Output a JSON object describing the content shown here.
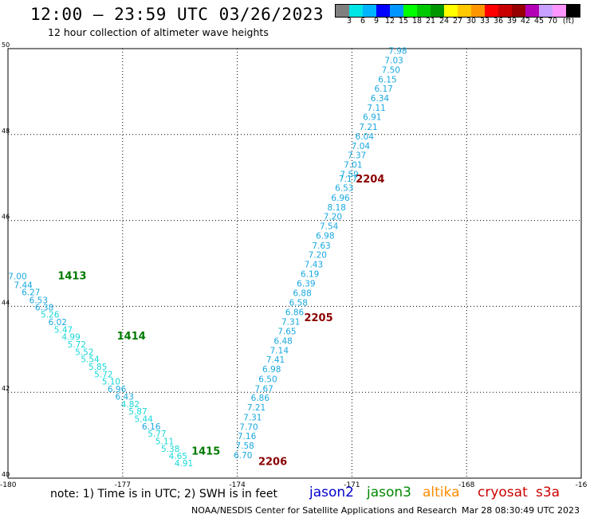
{
  "header": {
    "title": "12:00 – 23:59 UTC 03/26/2023",
    "subtitle": "12 hour collection of altimeter wave heights"
  },
  "colorbar": {
    "unit": "(ft)",
    "colors": [
      "#808080",
      "#00e5e5",
      "#00b4ff",
      "#0000ff",
      "#0096ff",
      "#00ff00",
      "#00c800",
      "#009600",
      "#ffff00",
      "#ffc800",
      "#ff9600",
      "#ff0000",
      "#c80000",
      "#960000",
      "#b400b4",
      "#c8a0ff",
      "#ff96ff",
      "#000000"
    ],
    "labels": [
      "3",
      "6",
      "9",
      "12",
      "15",
      "18",
      "21",
      "24",
      "27",
      "30",
      "33",
      "36",
      "39",
      "42",
      "45",
      "70"
    ]
  },
  "map": {
    "lon_ticks": [
      "-180",
      "-177",
      "-174",
      "-171",
      "-168",
      "-16"
    ],
    "lat_ticks": [
      "50",
      "48",
      "46",
      "44",
      "42",
      "40"
    ],
    "passes": [
      {
        "id": "2204",
        "satellite": "jason2",
        "label_color": "#8b0000",
        "points": [
          {
            "lat": 49.95,
            "lon": -169.8,
            "swh": "7.98"
          },
          {
            "lat": 49.73,
            "lon": -169.9,
            "swh": "7.03"
          },
          {
            "lat": 49.51,
            "lon": -169.98,
            "swh": "7.50"
          },
          {
            "lat": 49.29,
            "lon": -170.07,
            "swh": "6.15"
          },
          {
            "lat": 49.07,
            "lon": -170.17,
            "swh": "6.17"
          },
          {
            "lat": 48.85,
            "lon": -170.27,
            "swh": "6.34"
          },
          {
            "lat": 48.63,
            "lon": -170.36,
            "swh": "7.11"
          },
          {
            "lat": 48.41,
            "lon": -170.47,
            "swh": "6.91"
          },
          {
            "lat": 48.18,
            "lon": -170.57,
            "swh": "7.21"
          },
          {
            "lat": 47.96,
            "lon": -170.67,
            "swh": "6.04"
          },
          {
            "lat": 47.74,
            "lon": -170.77,
            "swh": "7.04"
          },
          {
            "lat": 47.52,
            "lon": -170.87,
            "swh": "7.37"
          },
          {
            "lat": 47.3,
            "lon": -170.97,
            "swh": "7.01"
          },
          {
            "lat": 47.08,
            "lon": -171.07,
            "swh": "7.59"
          },
          {
            "lat": 46.98,
            "lon": -171.1,
            "swh": "7.17"
          },
          {
            "lat": 46.76,
            "lon": -171.2,
            "swh": "6.53"
          },
          {
            "lat": 46.53,
            "lon": -171.3,
            "swh": "6.96"
          },
          {
            "lat": 46.31,
            "lon": -171.4,
            "swh": "8.18"
          },
          {
            "lat": 46.09,
            "lon": -171.5,
            "swh": "7.20"
          },
          {
            "lat": 45.87,
            "lon": -171.6,
            "swh": "7.54"
          },
          {
            "lat": 45.65,
            "lon": -171.7,
            "swh": "6.98"
          },
          {
            "lat": 45.42,
            "lon": -171.8,
            "swh": "7.63"
          },
          {
            "lat": 45.2,
            "lon": -171.9,
            "swh": "7.20"
          },
          {
            "lat": 44.98,
            "lon": -172.0,
            "swh": "7.43"
          },
          {
            "lat": 44.76,
            "lon": -172.1,
            "swh": "6.19"
          },
          {
            "lat": 44.54,
            "lon": -172.2,
            "swh": "6.39"
          },
          {
            "lat": 44.31,
            "lon": -172.3,
            "swh": "6.88"
          },
          {
            "lat": 44.09,
            "lon": -172.4,
            "swh": "6.58"
          },
          {
            "lat": 43.87,
            "lon": -172.5,
            "swh": "6.86"
          },
          {
            "lat": 43.65,
            "lon": -172.6,
            "swh": "7.31"
          },
          {
            "lat": 43.42,
            "lon": -172.7,
            "swh": "7.65"
          },
          {
            "lat": 43.2,
            "lon": -172.8,
            "swh": "6.48"
          },
          {
            "lat": 42.98,
            "lon": -172.9,
            "swh": "7.14"
          },
          {
            "lat": 42.76,
            "lon": -173.0,
            "swh": "7.41"
          },
          {
            "lat": 42.54,
            "lon": -173.1,
            "swh": "6.98"
          },
          {
            "lat": 42.31,
            "lon": -173.2,
            "swh": "6.50"
          },
          {
            "lat": 42.09,
            "lon": -173.3,
            "swh": "7.67"
          },
          {
            "lat": 41.87,
            "lon": -173.4,
            "swh": "6.86"
          },
          {
            "lat": 41.65,
            "lon": -173.5,
            "swh": "7.21"
          },
          {
            "lat": 41.42,
            "lon": -173.6,
            "swh": "7.31"
          },
          {
            "lat": 41.2,
            "lon": -173.7,
            "swh": "7.70"
          },
          {
            "lat": 40.98,
            "lon": -173.75,
            "swh": "7.16"
          },
          {
            "lat": 40.76,
            "lon": -173.8,
            "swh": "7.58"
          },
          {
            "lat": 40.54,
            "lon": -173.85,
            "swh": "6.70"
          }
        ]
      },
      {
        "id": "1413",
        "satellite": "jason3",
        "label_color": "#007a00",
        "points": [
          {
            "lat": 44.7,
            "lon": -179.75,
            "swh": "7.00"
          },
          {
            "lat": 44.5,
            "lon": -179.6,
            "swh": "7.44"
          },
          {
            "lat": 44.33,
            "lon": -179.4,
            "swh": "6.27"
          },
          {
            "lat": 44.15,
            "lon": -179.2,
            "swh": "6.53"
          },
          {
            "lat": 43.98,
            "lon": -179.05,
            "swh": "6.38"
          },
          {
            "lat": 43.81,
            "lon": -178.9,
            "swh": "5.26"
          },
          {
            "lat": 43.64,
            "lon": -178.7,
            "swh": "6.02"
          },
          {
            "lat": 43.46,
            "lon": -178.55,
            "swh": "5.47"
          },
          {
            "lat": 43.29,
            "lon": -178.35,
            "swh": "4.99"
          },
          {
            "lat": 43.12,
            "lon": -178.2,
            "swh": "5.72"
          },
          {
            "lat": 42.94,
            "lon": -178.0,
            "swh": "5.52"
          },
          {
            "lat": 42.77,
            "lon": -177.85,
            "swh": "5.54"
          },
          {
            "lat": 42.6,
            "lon": -177.65,
            "swh": "5.85"
          },
          {
            "lat": 42.42,
            "lon": -177.5,
            "swh": "5.72"
          },
          {
            "lat": 42.25,
            "lon": -177.3,
            "swh": "5.10"
          },
          {
            "lat": 42.08,
            "lon": -177.15,
            "swh": "6.96"
          },
          {
            "lat": 41.9,
            "lon": -176.95,
            "swh": "6.43"
          },
          {
            "lat": 41.73,
            "lon": -176.8,
            "swh": "4.82"
          },
          {
            "lat": 41.56,
            "lon": -176.6,
            "swh": "5.87"
          },
          {
            "lat": 41.38,
            "lon": -176.45,
            "swh": "5.44"
          },
          {
            "lat": 41.21,
            "lon": -176.25,
            "swh": "6.16"
          },
          {
            "lat": 41.04,
            "lon": -176.1,
            "swh": "5.77"
          },
          {
            "lat": 40.86,
            "lon": -175.9,
            "swh": "5.11"
          },
          {
            "lat": 40.69,
            "lon": -175.75,
            "swh": "5.38"
          },
          {
            "lat": 40.52,
            "lon": -175.55,
            "swh": "4.65"
          },
          {
            "lat": 40.35,
            "lon": -175.4,
            "swh": "4.91"
          }
        ]
      }
    ],
    "pass_labels": [
      {
        "text": "2204",
        "color": "#8b0000",
        "lat": 46.98,
        "lon": -170.9
      },
      {
        "text": "2205",
        "color": "#8b0000",
        "lat": 43.75,
        "lon": -172.25
      },
      {
        "text": "2206",
        "color": "#8b0000",
        "lat": 40.4,
        "lon": -173.45
      },
      {
        "text": "1413",
        "color": "#007a00",
        "lat": 44.72,
        "lon": -178.7
      },
      {
        "text": "1414",
        "color": "#007a00",
        "lat": 43.32,
        "lon": -177.15
      },
      {
        "text": "1415",
        "color": "#007a00",
        "lat": 40.64,
        "lon": -175.2
      }
    ]
  },
  "footer": {
    "note": "note: 1) Time is in UTC; 2) SWH is in feet",
    "legend": [
      {
        "label": "jason2",
        "color": "#0000cc"
      },
      {
        "label": "jason3",
        "color": "#008800"
      },
      {
        "label": "altika",
        "color": "#ff8c00"
      },
      {
        "label": "cryosat",
        "color": "#cc0000"
      },
      {
        "label": "s3a",
        "color": "#cc0000"
      }
    ],
    "credit": "NOAA/NESDIS Center for Satellite Applications and Research",
    "timestamp": "Mar 28 08:30:49 UTC 2023"
  }
}
